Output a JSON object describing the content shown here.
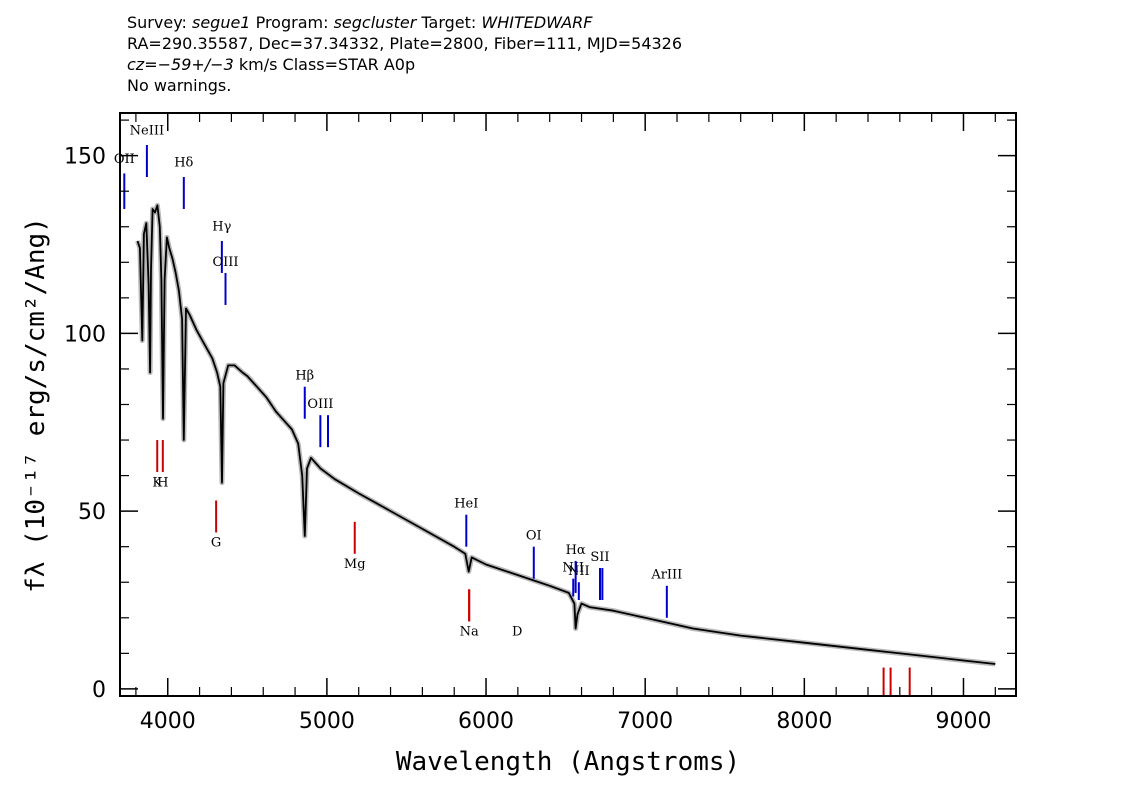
{
  "header": {
    "line1": {
      "survey_label": "Survey:",
      "survey": "segue1",
      "program_label": "Program:",
      "program": "segcluster",
      "target_label": "Target:",
      "target": "WHITEDWARF"
    },
    "line2": "RA=290.35587, Dec=37.34332, Plate=2800, Fiber=111, MJD=54326",
    "line3": {
      "cz_label": "cz=",
      "cz_value": "−59+/−3",
      "rest": " km/s Class=STAR A0p"
    },
    "line4": "No warnings."
  },
  "chart_data": {
    "type": "line",
    "title": "",
    "xlabel": "Wavelength (Angstroms)",
    "ylabel": "fλ (10⁻¹⁷ erg/s/cm²/Ang)",
    "xlim": [
      3700,
      9330
    ],
    "ylim": [
      -2,
      162
    ],
    "xticks": [
      4000,
      5000,
      6000,
      7000,
      8000,
      9000
    ],
    "yticks": [
      0,
      50,
      100,
      150
    ],
    "series": [
      {
        "color": "#000000",
        "band_color": "#b8b8b8",
        "x": [
          3810,
          3825,
          3840,
          3850,
          3865,
          3880,
          3889,
          3895,
          3905,
          3920,
          3935,
          3950,
          3960,
          3970,
          3980,
          3995,
          4010,
          4030,
          4050,
          4070,
          4090,
          4101,
          4115,
          4140,
          4180,
          4230,
          4280,
          4310,
          4330,
          4341,
          4350,
          4380,
          4420,
          4470,
          4500,
          4560,
          4620,
          4680,
          4720,
          4780,
          4820,
          4845,
          4861,
          4875,
          4900,
          4960,
          5050,
          5200,
          5400,
          5600,
          5800,
          5870,
          5891,
          5910,
          6000,
          6200,
          6400,
          6520,
          6555,
          6563,
          6575,
          6600,
          6650,
          6800,
          7000,
          7300,
          7600,
          8000,
          8400,
          8800,
          9000,
          9200
        ],
        "y": [
          126,
          124,
          98,
          128,
          131,
          114,
          89,
          118,
          135,
          134,
          136,
          130,
          115,
          76,
          115,
          127,
          124,
          121,
          117,
          112,
          104,
          70,
          107,
          105,
          101,
          97,
          93,
          89,
          85,
          58,
          86,
          91,
          91,
          89,
          88,
          85,
          82,
          78,
          76,
          73,
          69,
          60,
          43,
          62,
          65,
          62,
          59,
          55,
          50,
          45,
          40,
          38,
          33,
          37,
          35,
          32,
          29,
          27,
          24,
          17,
          21,
          24,
          23,
          22,
          20,
          17,
          15,
          13,
          11,
          9,
          8,
          7
        ]
      }
    ],
    "emission_lines": [
      {
        "label": "OII",
        "x": 3727,
        "y1": 135,
        "y2": 145,
        "label_y": 148
      },
      {
        "label": "NeIII",
        "x": 3869,
        "y1": 144,
        "y2": 153,
        "label_y": 156
      },
      {
        "label": "Hδ",
        "x": 4101,
        "y1": 135,
        "y2": 144,
        "label_y": 147
      },
      {
        "label": "Hγ",
        "x": 4340,
        "y1": 117,
        "y2": 126,
        "label_y": 129
      },
      {
        "label": "OIII",
        "x": 4363,
        "y1": 108,
        "y2": 117,
        "label_y": 119
      },
      {
        "label": "Hβ",
        "x": 4861,
        "y1": 76,
        "y2": 85,
        "label_y": 87
      },
      {
        "label": "OIII",
        "x": 4959,
        "y1": 68,
        "y2": 77,
        "label_y": 79
      },
      {
        "label": "OIII",
        "x": 5007,
        "y1": 68,
        "y2": 77,
        "label_y": 79,
        "hide_label": true
      },
      {
        "label": "HeI",
        "x": 5876,
        "y1": 40,
        "y2": 49,
        "label_y": 51
      },
      {
        "label": "OI",
        "x": 6300,
        "y1": 31,
        "y2": 40,
        "label_y": 42
      },
      {
        "label": "NII",
        "x": 6548,
        "y1": 26,
        "y2": 31,
        "label_y": 33
      },
      {
        "label": "Hα",
        "x": 6563,
        "y1": 27,
        "y2": 36,
        "label_y": 38
      },
      {
        "label": "NII",
        "x": 6583,
        "y1": 25,
        "y2": 30,
        "label_y": 32
      },
      {
        "label": "SII",
        "x": 6716,
        "y1": 25,
        "y2": 34,
        "label_y": 36
      },
      {
        "label": "SII",
        "x": 6731,
        "y1": 25,
        "y2": 34,
        "label_y": 36,
        "hide_label": true
      },
      {
        "label": "ArIII",
        "x": 7136,
        "y1": 20,
        "y2": 29,
        "label_y": 31
      }
    ],
    "absorption_lines": [
      {
        "label": "K",
        "x": 3934,
        "y1": 61,
        "y2": 70,
        "label_y": 57
      },
      {
        "label": "H",
        "x": 3969,
        "y1": 61,
        "y2": 70,
        "label_y": 57
      },
      {
        "label": "G",
        "x": 4304,
        "y1": 44,
        "y2": 53,
        "label_y": 40
      },
      {
        "label": "Mg",
        "x": 5175,
        "y1": 38,
        "y2": 47,
        "label_y": 34
      },
      {
        "label": "Na",
        "x": 5894,
        "y1": 19,
        "y2": 28,
        "label_y": 15
      },
      {
        "label": "D",
        "x": 5894,
        "y1": 19,
        "y2": 28,
        "label_y": 15,
        "label_dx": 48
      },
      {
        "x": 8498,
        "y1": -2,
        "y2": 6
      },
      {
        "x": 8542,
        "y1": -2,
        "y2": 6
      },
      {
        "x": 8662,
        "y1": -2,
        "y2": 6
      }
    ],
    "emission_color": "#0000cc",
    "absorption_color": "#cc0000"
  }
}
